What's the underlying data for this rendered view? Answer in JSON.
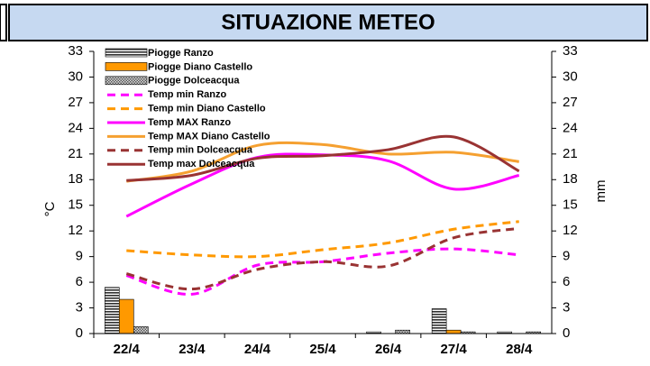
{
  "chart_data": {
    "type": "combo",
    "title": "SITUAZIONE METEO",
    "ylabel": "°C",
    "y2label": "mm",
    "categories": [
      "22/4",
      "23/4",
      "24/4",
      "25/4",
      "26/4",
      "27/4",
      "28/4"
    ],
    "ylim": [
      0,
      33
    ],
    "yticks": [
      0,
      3,
      6,
      9,
      12,
      15,
      18,
      21,
      24,
      27,
      30,
      33
    ],
    "y2lim": [
      0,
      33
    ],
    "y2ticks": [
      0,
      3,
      6,
      9,
      12,
      15,
      18,
      21,
      24,
      27,
      30,
      33
    ],
    "grid": false,
    "legend": "top-left",
    "series": [
      {
        "name": "Piogge Ranzo",
        "type": "bar",
        "axis": "y2",
        "color": "#404040",
        "pattern": "stripes",
        "values": [
          5.4,
          0,
          0,
          0,
          0.2,
          2.9,
          0.2
        ]
      },
      {
        "name": "Piogge Diano Castello",
        "type": "bar",
        "axis": "y2",
        "color": "#ff9900",
        "pattern": "solid",
        "values": [
          4.0,
          0,
          0,
          0,
          0,
          0.4,
          0
        ]
      },
      {
        "name": "Piogge Dolceacqua",
        "type": "bar",
        "axis": "y2",
        "color": "#808080",
        "pattern": "checks",
        "values": [
          0.8,
          0,
          0,
          0,
          0.4,
          0.2,
          0.2
        ]
      },
      {
        "name": "Temp min Ranzo",
        "type": "line",
        "dash": true,
        "color": "#ff00ff",
        "values": [
          6.8,
          4.6,
          8.0,
          8.4,
          9.4,
          9.9,
          9.2
        ]
      },
      {
        "name": "Temp min Diano Castello",
        "type": "line",
        "dash": true,
        "color": "#ff9900",
        "values": [
          9.7,
          9.2,
          9.0,
          9.8,
          10.6,
          12.2,
          13.1
        ]
      },
      {
        "name": "Temp MAX Ranzo",
        "type": "line",
        "dash": false,
        "color": "#ff00ff",
        "values": [
          13.7,
          17.5,
          20.6,
          20.9,
          20.2,
          16.9,
          18.5
        ]
      },
      {
        "name": "Temp MAX Diano Castello",
        "type": "line",
        "dash": false,
        "color": "#f5a030",
        "values": [
          17.8,
          19.0,
          22.0,
          22.1,
          21.0,
          21.2,
          20.1
        ]
      },
      {
        "name": "Temp min Dolceacqua",
        "type": "line",
        "dash": true,
        "color": "#993333",
        "values": [
          7.0,
          5.2,
          7.5,
          8.4,
          7.9,
          11.2,
          12.3
        ]
      },
      {
        "name": "Temp max Dolceacqua",
        "type": "line",
        "dash": false,
        "color": "#993333",
        "values": [
          17.9,
          18.5,
          20.5,
          20.8,
          21.5,
          23.0,
          19.0
        ]
      }
    ]
  }
}
